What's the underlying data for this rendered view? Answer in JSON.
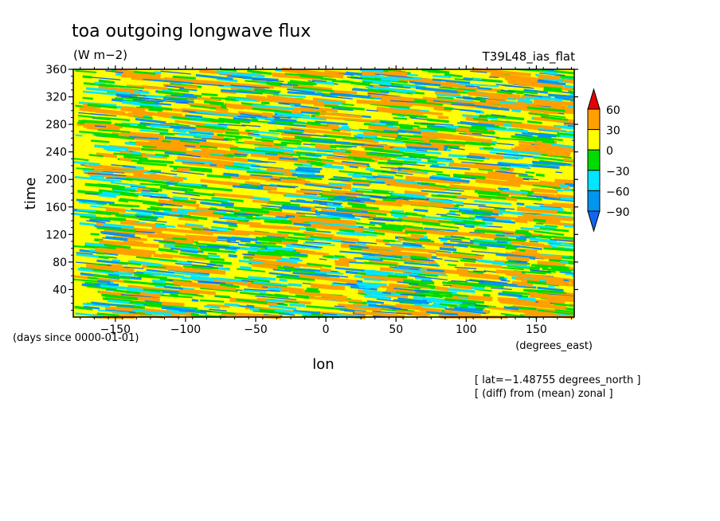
{
  "chart_data": {
    "type": "heatmap",
    "title": "toa outgoing longwave flux",
    "units": "(W m−2)",
    "experiment": "T39L48_ias_flat",
    "xlabel": "lon",
    "ylabel": "time",
    "x_units": "(degrees_east)",
    "y_units": "(days since 0000-01-01)",
    "xlim": [
      -180,
      177
    ],
    "ylim": [
      0,
      360
    ],
    "x_ticks": [
      -150,
      -100,
      -50,
      0,
      50,
      100,
      150
    ],
    "y_ticks": [
      40,
      80,
      120,
      160,
      200,
      240,
      280,
      320,
      360
    ],
    "annotations": [
      "[ lat=−1.48755 degrees_north ]",
      "[ (diff) from (mean) zonal ]"
    ],
    "colorbar": {
      "levels": [
        -90,
        -60,
        -30,
        0,
        30,
        60
      ],
      "colors": [
        "#1464f0",
        "#0096f0",
        "#00e6ff",
        "#00dc00",
        "#ffff00",
        "#ffa000",
        "#e60000"
      ]
    }
  }
}
